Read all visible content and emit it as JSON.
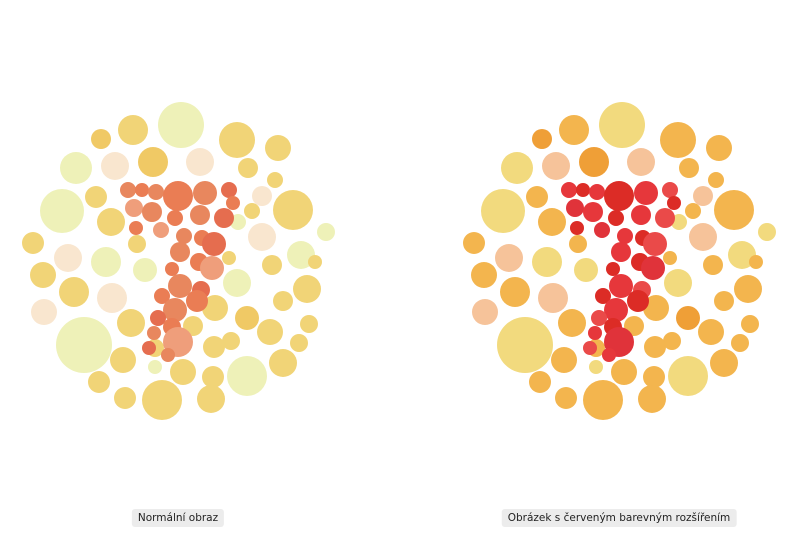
{
  "plates": [
    {
      "caption": "Normální obraz",
      "palette": {
        "background": [
          "#eef1b8",
          "#f1d477",
          "#f0c965",
          "#f9e6cf",
          "#f7e3b8"
        ],
        "figure": [
          "#e8875e",
          "#ea7d54",
          "#e56d4f",
          "#ef9e7b"
        ]
      }
    },
    {
      "caption": "Obrázek s červeným barevným rozšířením",
      "palette": {
        "background": [
          "#f2da7e",
          "#f3b54e",
          "#ef9f37",
          "#f6c39a",
          "#f0c256"
        ],
        "figure": [
          "#e6373b",
          "#dc2c26",
          "#ea4a49",
          "#e0333a"
        ]
      }
    }
  ]
}
